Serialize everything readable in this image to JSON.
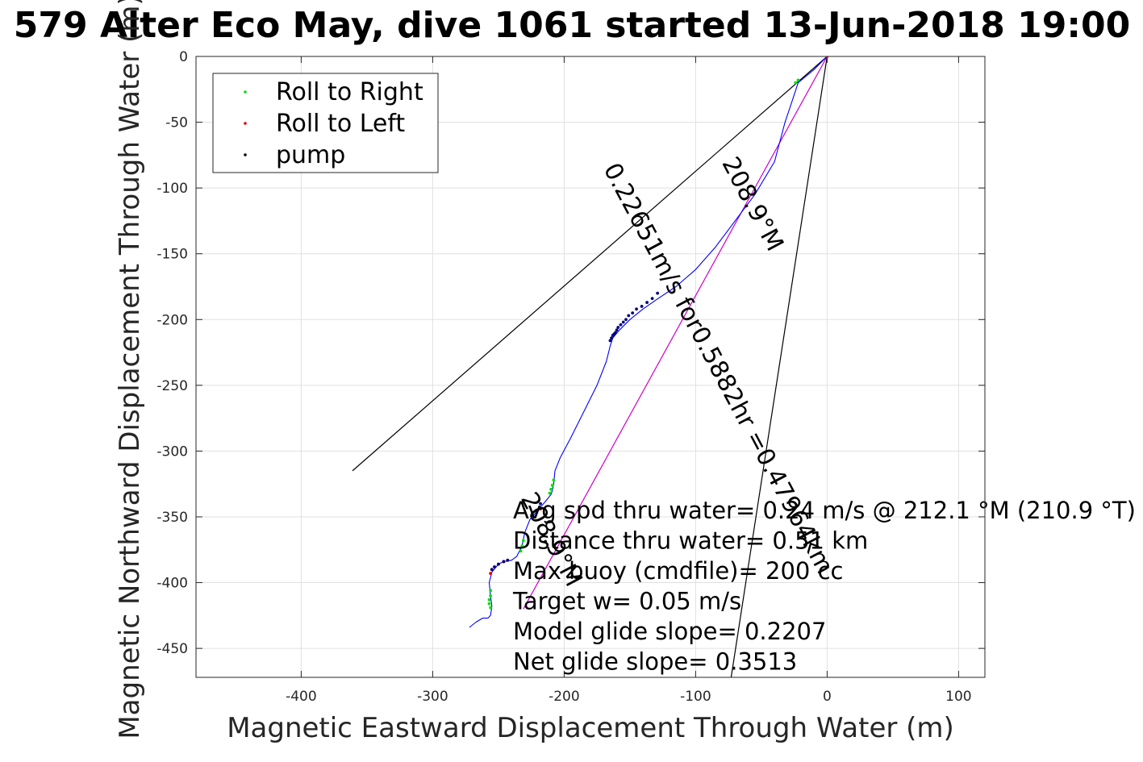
{
  "chart_data": {
    "type": "line",
    "title": "579 Alter Eco May, dive 1061 started 13-Jun-2018 19:00",
    "xlabel": "Magnetic Eastward Displacement Through Water (m)",
    "ylabel": "Magnetic Northward Displacement Through Water (m)",
    "xlim": [
      -480,
      120
    ],
    "ylim": [
      -472,
      0
    ],
    "xticks": [
      -400,
      -300,
      -200,
      -100,
      0,
      100
    ],
    "yticks": [
      0,
      -50,
      -100,
      -150,
      -200,
      -250,
      -300,
      -350,
      -400,
      -450
    ],
    "grid": true,
    "legend": {
      "placement": "top-left",
      "entries": [
        {
          "label": "Roll to Right",
          "color": "#00e000",
          "marker": "dot"
        },
        {
          "label": "Roll to Left",
          "color": "#e00000",
          "marker": "dot"
        },
        {
          "label": "pump",
          "color": "#000000",
          "marker": "dot"
        }
      ]
    },
    "track": {
      "color": "#0000ff",
      "x": [
        0,
        -10,
        -22,
        -28,
        -32,
        -40,
        -55,
        -70,
        -85,
        -100,
        -115,
        -130,
        -140,
        -150,
        -158,
        -163,
        -165,
        -168,
        -175,
        -185,
        -195,
        -203,
        -207,
        -208,
        -209,
        -210,
        -214,
        -220,
        -226,
        -230,
        -232,
        -236,
        -240,
        -246,
        -250,
        -255,
        -257,
        -256,
        -255,
        -256,
        -258,
        -262,
        -267,
        -272
      ],
      "y": [
        0,
        -10,
        -20,
        -38,
        -50,
        -80,
        -105,
        -125,
        -145,
        -162,
        -175,
        -185,
        -192,
        -200,
        -208,
        -214,
        -220,
        -232,
        -250,
        -270,
        -290,
        -305,
        -315,
        -325,
        -330,
        -333,
        -338,
        -345,
        -352,
        -362,
        -372,
        -380,
        -383,
        -384,
        -386,
        -392,
        -400,
        -410,
        -418,
        -425,
        -427,
        -427,
        -430,
        -434
      ]
    },
    "roll_right": {
      "color": "#00e000",
      "x": [
        -22,
        -24,
        -208,
        -209,
        -210,
        -211,
        -231,
        -232,
        -233,
        -256,
        -256,
        -257,
        -257,
        -256
      ],
      "y": [
        -18,
        -20,
        -322,
        -326,
        -329,
        -332,
        -368,
        -372,
        -376,
        -406,
        -410,
        -413,
        -416,
        -419
      ]
    },
    "roll_left": {
      "color": "#e00000",
      "x": [
        0,
        -218,
        -243,
        -246,
        -250,
        -253,
        -255,
        -256
      ],
      "y": [
        0,
        -344,
        -383,
        -384,
        -386,
        -388,
        -390,
        -393
      ]
    },
    "pump": {
      "color": "#000080",
      "x": [
        -129,
        -133,
        -137,
        -141,
        -145,
        -148,
        -151,
        -153,
        -155,
        -157,
        -159,
        -160,
        -161,
        -162,
        -163,
        -164,
        -165,
        -218,
        -221,
        -243,
        -246,
        -250,
        -253,
        -255
      ],
      "y": [
        -180,
        -184,
        -187,
        -190,
        -192,
        -195,
        -197,
        -200,
        -202,
        -204,
        -206,
        -208,
        -210,
        -211,
        -212,
        -214,
        -216,
        -340,
        -345,
        -383,
        -384,
        -386,
        -388,
        -390
      ]
    },
    "reference_lines": [
      {
        "name": "heading line",
        "color": "#000000",
        "x": [
          0,
          -361
        ],
        "y": [
          0,
          -315
        ]
      },
      {
        "name": "heading line",
        "color": "#000000",
        "x": [
          0,
          -73
        ],
        "y": [
          0,
          -472
        ]
      },
      {
        "name": "mean track",
        "color": "#cc00cc",
        "x": [
          0,
          -231
        ],
        "y": [
          0,
          -420
        ]
      }
    ],
    "annotations": [
      {
        "text": "208.9°M",
        "x": -62,
        "y": -115,
        "angle": 62
      },
      {
        "text": "0.22651m/s for0.5882hr =0.47964km",
        "x": -88,
        "y": -240,
        "angle": 62
      },
      {
        "text": "208.9°M",
        "x": -215,
        "y": -370,
        "angle": 62
      }
    ],
    "stats": [
      "Avg spd thru water=  0.24 m/s @ 212.1 °M (210.9 °T)",
      "Distance thru water=  0.51 km",
      "Max buoy (cmdfile)= 200 cc",
      "Target w= 0.05 m/s",
      "Model glide slope= 0.2207",
      "Net glide slope= 0.3513"
    ]
  }
}
